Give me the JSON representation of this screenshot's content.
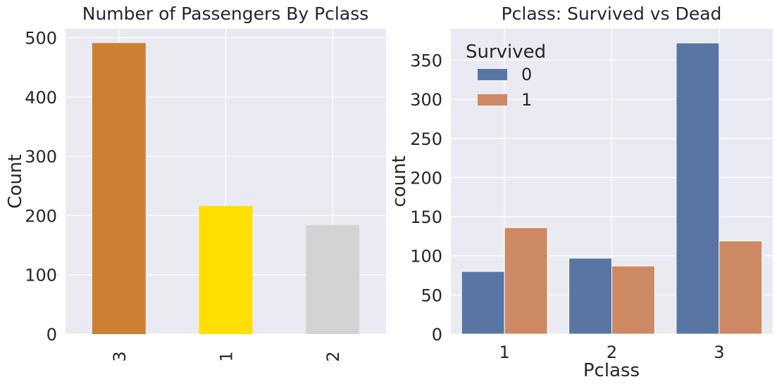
{
  "chart_data": [
    {
      "type": "bar",
      "title": "Number of Passengers By Pclass",
      "xlabel": "",
      "ylabel": "Count",
      "categories": [
        "3",
        "1",
        "2"
      ],
      "values": [
        491,
        216,
        184
      ],
      "colors": [
        "#CD7F32",
        "#FFDF00",
        "#D3D3D3"
      ],
      "ylim": [
        0,
        515
      ],
      "yticks": [
        0,
        100,
        200,
        300,
        400,
        500
      ],
      "xtick_rotation": "vertical",
      "grid": true,
      "background": "#EAEAF2"
    },
    {
      "type": "bar",
      "title": "Pclass: Survived vs Dead",
      "xlabel": "Pclass",
      "ylabel": "count",
      "categories": [
        "1",
        "2",
        "3"
      ],
      "series": [
        {
          "name": "0",
          "values": [
            80,
            97,
            372
          ],
          "color": "#5875A4"
        },
        {
          "name": "1",
          "values": [
            136,
            87,
            119
          ],
          "color": "#CC8963"
        }
      ],
      "legend_title": "Survived",
      "legend_position": "top-left",
      "ylim": [
        0,
        390
      ],
      "yticks": [
        0,
        50,
        100,
        150,
        200,
        250,
        300,
        350
      ],
      "grid": true,
      "background": "#EAEAF2"
    }
  ]
}
